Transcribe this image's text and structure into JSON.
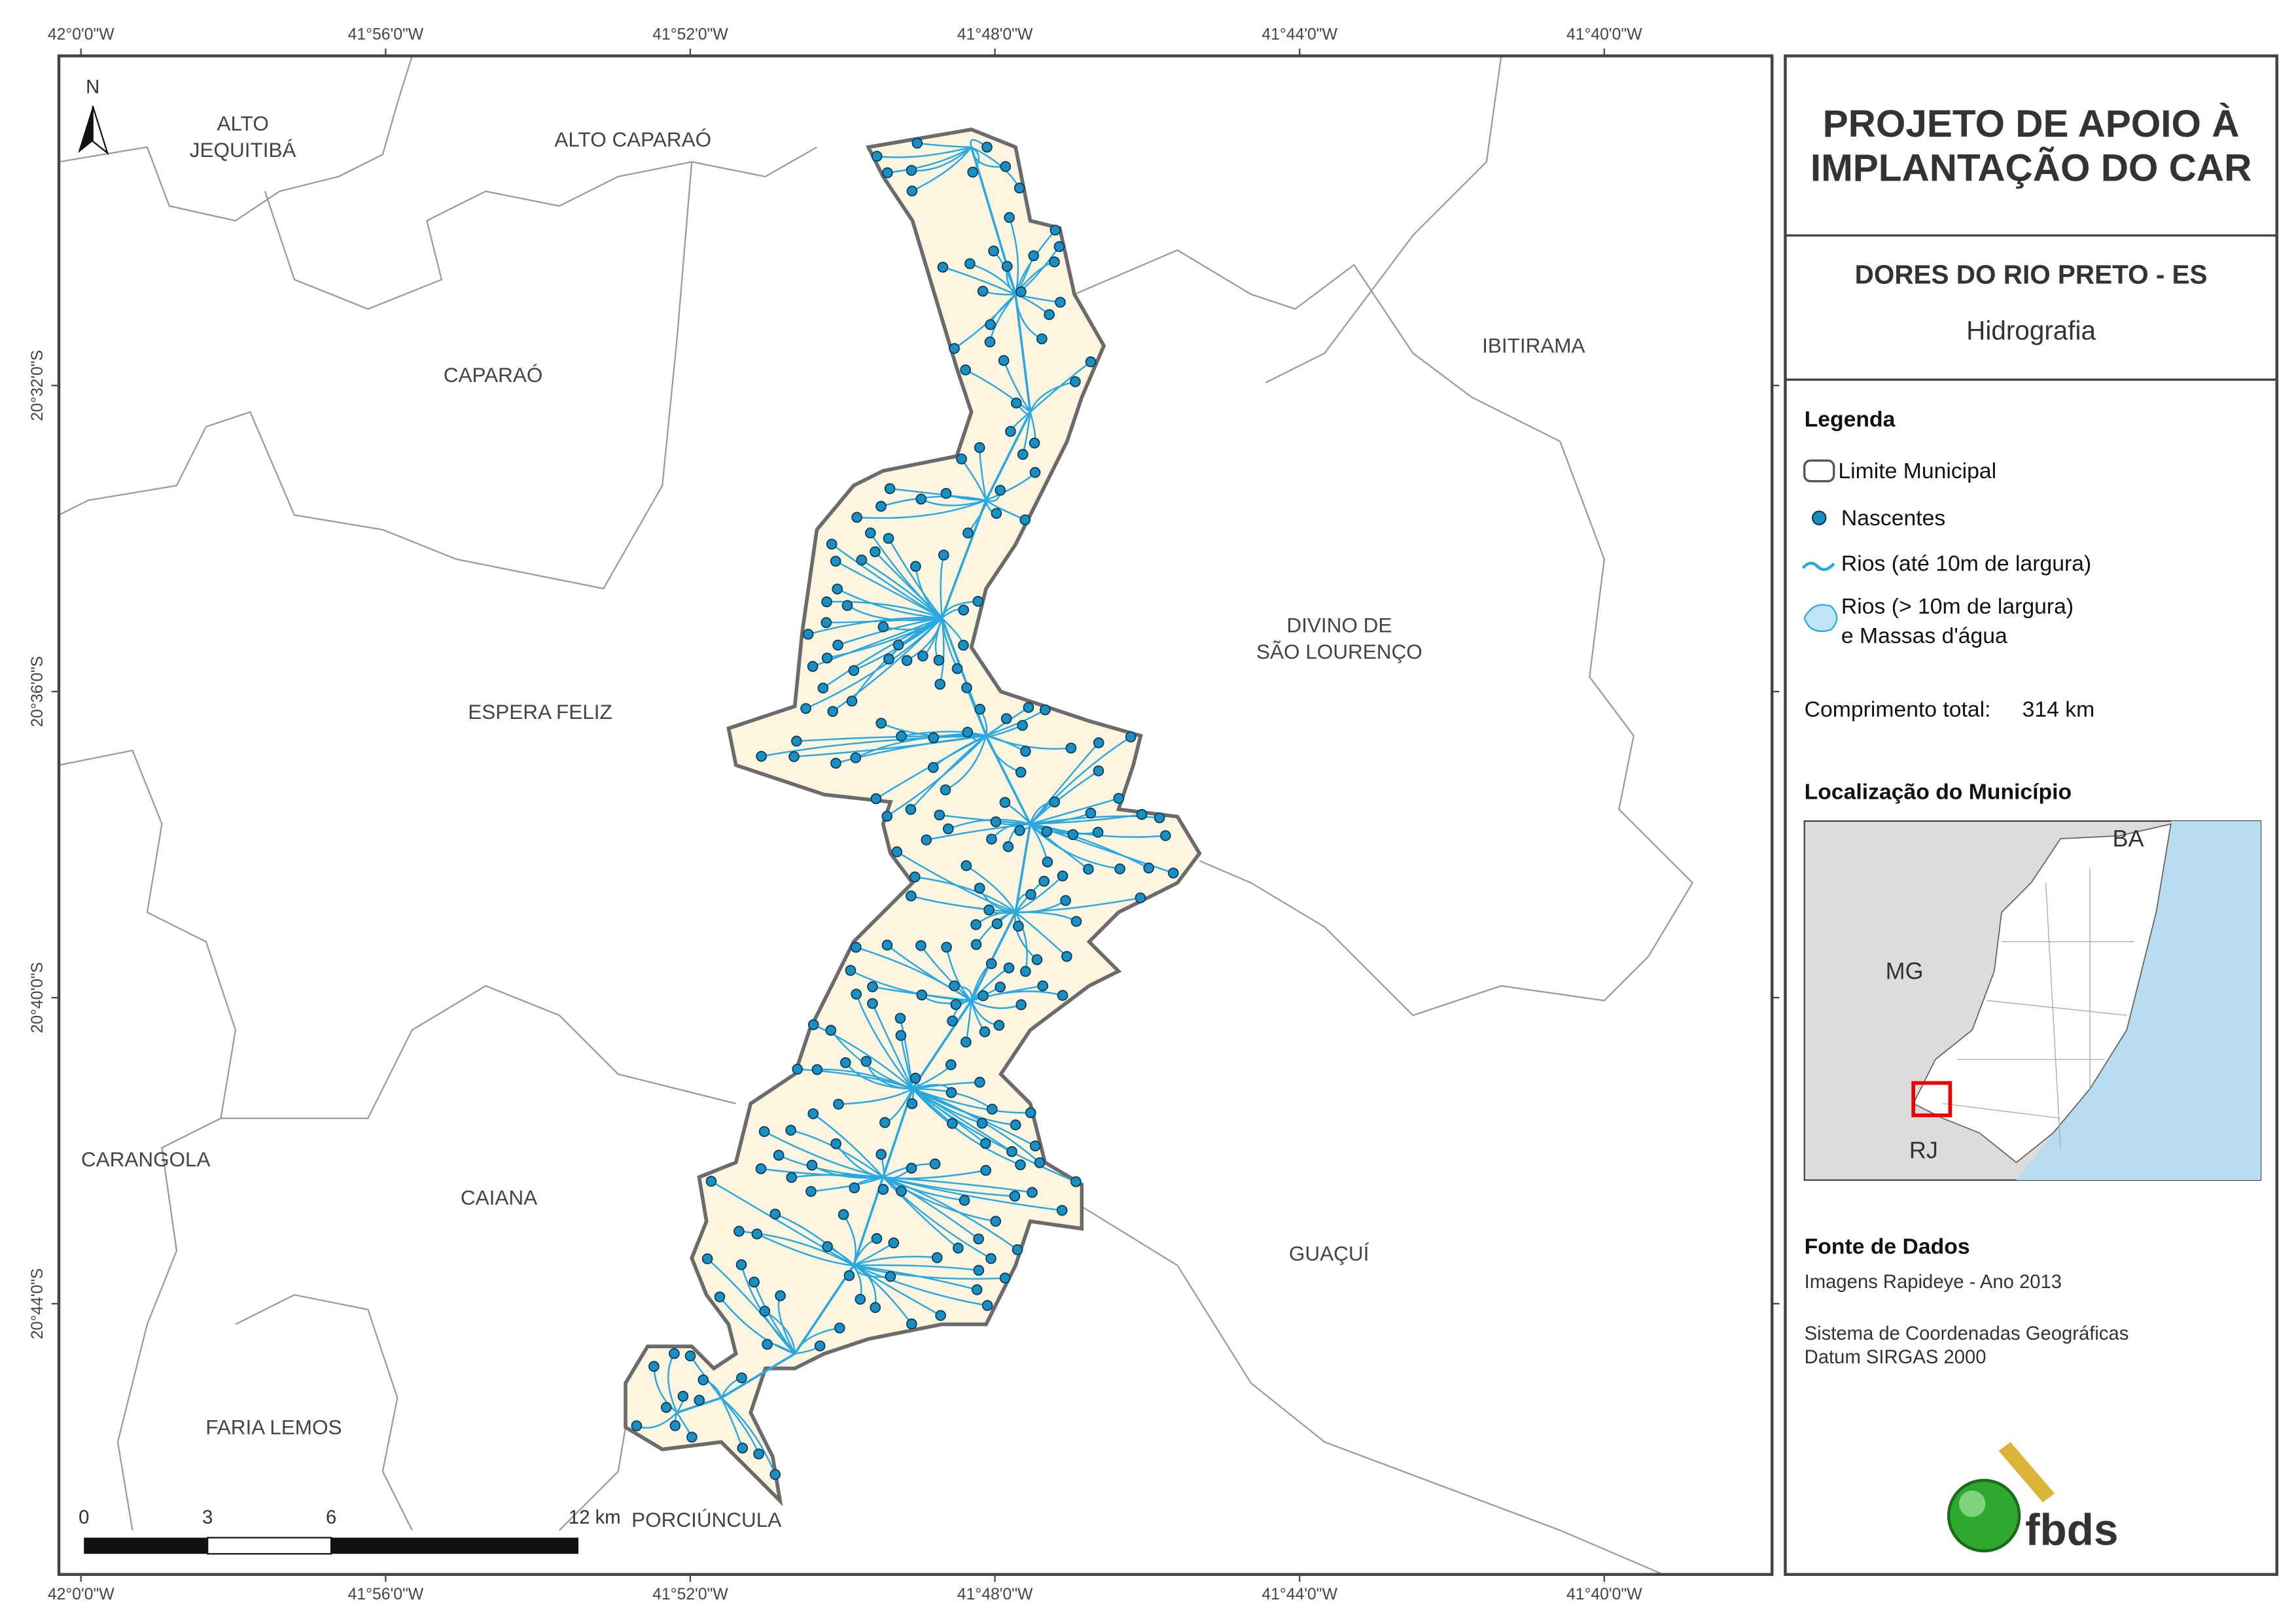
{
  "map": {
    "x_ticks": [
      "42°0'0\"W",
      "41°56'0\"W",
      "41°52'0\"W",
      "41°48'0\"W",
      "41°44'0\"W",
      "41°40'0\"W"
    ],
    "y_ticks": [
      "20°32'0\"S",
      "20°36'0\"S",
      "20°40'0\"S",
      "20°44'0\"S"
    ],
    "north": "N",
    "places": [
      [
        "ALTO",
        "JEQUITIBÁ"
      ],
      [
        "ALTO CAPARAÓ"
      ],
      [
        "CAPARAÓ"
      ],
      [
        "IBITIRAMA"
      ],
      [
        "DIVINO DE",
        "SÃO LOURENÇO"
      ],
      [
        "ESPERA FELIZ"
      ],
      [
        "CARANGOLA"
      ],
      [
        "CAIANA"
      ],
      [
        "GUAÇUÍ"
      ],
      [
        "FARIA LEMOS"
      ],
      [
        "PORCIÚNCULA"
      ]
    ],
    "scale_bar": [
      "0",
      "3",
      "6",
      "12 km"
    ]
  },
  "panel": {
    "title": [
      "PROJETO DE APOIO À",
      "IMPLANTAÇÃO DO CAR"
    ],
    "subtitle": "DORES DO RIO PRETO - ES",
    "theme": "Hidrografia",
    "legend": {
      "title": "Legenda",
      "items": [
        [
          "Limite Municipal"
        ],
        [
          "Nascentes"
        ],
        [
          "Rios (até 10m de largura)"
        ],
        [
          "Rios (> 10m de largura)",
          "e Massas d'água"
        ]
      ]
    },
    "total_length": {
      "label": "Comprimento total:",
      "value": "314 km"
    },
    "location": {
      "title": "Localização do Município",
      "labels": [
        "BA",
        "MG",
        "RJ"
      ]
    },
    "sources": {
      "title": "Fonte de Dados",
      "lines": [
        "Imagens Rapideye - Ano 2013",
        "Sistema de Coordenadas Geográficas",
        "Datum SIRGAS 2000"
      ]
    },
    "logo": "fbds"
  }
}
